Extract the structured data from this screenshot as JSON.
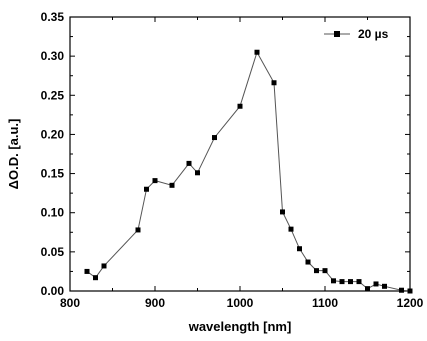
{
  "chart_data": {
    "type": "line",
    "title": "",
    "xlabel": "wavelength [nm]",
    "ylabel": "ΔO.D. [a.u.]",
    "xlim": [
      800,
      1200
    ],
    "ylim": [
      0.0,
      0.35
    ],
    "xticks": [
      800,
      900,
      1000,
      1100,
      1200
    ],
    "xtick_labels": [
      "800",
      "900",
      "1000",
      "1100",
      "1200"
    ],
    "yticks": [
      0.0,
      0.05,
      0.1,
      0.15,
      0.2,
      0.25,
      0.3,
      0.35
    ],
    "ytick_labels": [
      "0.00",
      "0.05",
      "0.10",
      "0.15",
      "0.20",
      "0.25",
      "0.30",
      "0.35"
    ],
    "grid": false,
    "legend_position": "top-right",
    "series": [
      {
        "name": "20 µs",
        "marker": "square",
        "color": "#000000",
        "line_color": "#555555",
        "x": [
          820,
          830,
          840,
          880,
          890,
          900,
          920,
          940,
          950,
          970,
          1000,
          1020,
          1040,
          1050,
          1060,
          1070,
          1080,
          1090,
          1100,
          1110,
          1120,
          1130,
          1140,
          1150,
          1160,
          1170,
          1190,
          1200
        ],
        "y": [
          0.025,
          0.017,
          0.032,
          0.078,
          0.13,
          0.141,
          0.135,
          0.163,
          0.151,
          0.196,
          0.236,
          0.305,
          0.266,
          0.101,
          0.079,
          0.054,
          0.037,
          0.026,
          0.026,
          0.013,
          0.012,
          0.012,
          0.012,
          0.003,
          0.009,
          0.006,
          0.001,
          0.0
        ]
      }
    ]
  }
}
